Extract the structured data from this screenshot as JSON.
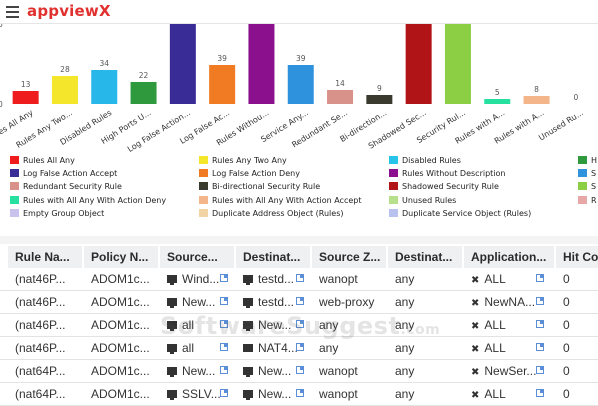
{
  "header": {
    "logo_text": "appviewX"
  },
  "chart_data": {
    "type": "bar",
    "title": "",
    "xlabel": "",
    "ylabel": "",
    "y_tick_labels": [
      "0",
      "0"
    ],
    "ylim": [
      0,
      80
    ],
    "grid": false,
    "categories": [
      "Rules All Any",
      "Rules Any Two...",
      "Disabled Rules",
      "High Ports U...",
      "Log False Action...",
      "Log False Ac...",
      "Rules Withou...",
      "Service Any...",
      "Redundant Se...",
      "Bi-direction...",
      "Shadowed Sec...",
      "Security Rul...",
      "Rules with A...",
      "Rules with A...",
      "Unused Ru..."
    ],
    "values": [
      13,
      28,
      34,
      22,
      80,
      39,
      80,
      39,
      14,
      9,
      80,
      80,
      5,
      8,
      0
    ],
    "value_labels": [
      "13",
      "28",
      "34",
      "22",
      "",
      "39",
      "",
      "39",
      "14",
      "9",
      "",
      "",
      "5",
      "8",
      "0"
    ],
    "colors": [
      "#ee1c1c",
      "#f4e62a",
      "#27b7e8",
      "#2f9a3d",
      "#3a2c97",
      "#f07b23",
      "#8a108e",
      "#2e92dd",
      "#d8928a",
      "#3a3a2e",
      "#b01416",
      "#8ccf45",
      "#27e0a0",
      "#f3b589",
      "#d9d9d9"
    ]
  },
  "legend": {
    "items": [
      {
        "label": "Rules All Any",
        "color": "#ee1c1c"
      },
      {
        "label": "Rules Any Two Any",
        "color": "#f4e62a"
      },
      {
        "label": "Disabled Rules",
        "color": "#27c3e8"
      },
      {
        "label": "H",
        "color": "#2f9a3d"
      },
      {
        "label": "Log False Action Accept",
        "color": "#3a2c97"
      },
      {
        "label": "Log False Action Deny",
        "color": "#f07b23"
      },
      {
        "label": "Rules Without Description",
        "color": "#8a108e"
      },
      {
        "label": "S",
        "color": "#2e92dd"
      },
      {
        "label": "Redundant Security Rule",
        "color": "#d8928a"
      },
      {
        "label": "Bi-directional Security Rule",
        "color": "#3a3a2e"
      },
      {
        "label": "Shadowed Security Rule",
        "color": "#b01416"
      },
      {
        "label": "S",
        "color": "#8ccf45"
      },
      {
        "label": "Rules with All Any With Action Deny",
        "color": "#27e0a0"
      },
      {
        "label": "Rules with All Any With Action Accept",
        "color": "#f3b589"
      },
      {
        "label": "Unused Rules",
        "color": "#b6e08c"
      },
      {
        "label": "R",
        "color": "#e8a7a7"
      },
      {
        "label": "Empty Group Object",
        "color": "#c9c2ec"
      },
      {
        "label": "Duplicate Address Object (Rules)",
        "color": "#f2d3a6"
      },
      {
        "label": "Duplicate Service Object (Rules)",
        "color": "#b9c2ee"
      }
    ]
  },
  "table": {
    "columns": [
      "Rule Na...",
      "Policy N...",
      "Source...",
      "Destinat...",
      "Source Z...",
      "Destinat...",
      "Application...",
      "Hit Co"
    ],
    "rows": [
      {
        "rule": "(nat46P...",
        "policy": "ADOM1c...",
        "source": "Wind...",
        "dest": "testd...",
        "szone": "wanopt",
        "dzone": "any",
        "app": "ALL",
        "hits": "0"
      },
      {
        "rule": "(nat46P...",
        "policy": "ADOM1c...",
        "source": "New...",
        "dest": "testd...",
        "szone": "web-proxy",
        "dzone": "any",
        "app": "NewNA...",
        "hits": "0"
      },
      {
        "rule": "(nat46P...",
        "policy": "ADOM1c...",
        "source": "all",
        "dest": "New...",
        "szone": "any",
        "dzone": "any",
        "app": "ALL",
        "hits": "0"
      },
      {
        "rule": "(nat46P...",
        "policy": "ADOM1c...",
        "source": "all",
        "dest": "NAT4...",
        "szone": "any",
        "dzone": "any",
        "app": "ALL",
        "hits": "0"
      },
      {
        "rule": "(nat64P...",
        "policy": "ADOM1c...",
        "source": "New...",
        "dest": "New...",
        "szone": "wanopt",
        "dzone": "any",
        "app": "NewSer...",
        "hits": "0"
      },
      {
        "rule": "(nat64P...",
        "policy": "ADOM1c...",
        "source": "SSLV...",
        "dest": "New...",
        "szone": "wanopt",
        "dzone": "any",
        "app": "ALL",
        "hits": "0"
      }
    ]
  },
  "watermark": {
    "text": "SoftwareSuggest",
    "suffix": ".com"
  }
}
